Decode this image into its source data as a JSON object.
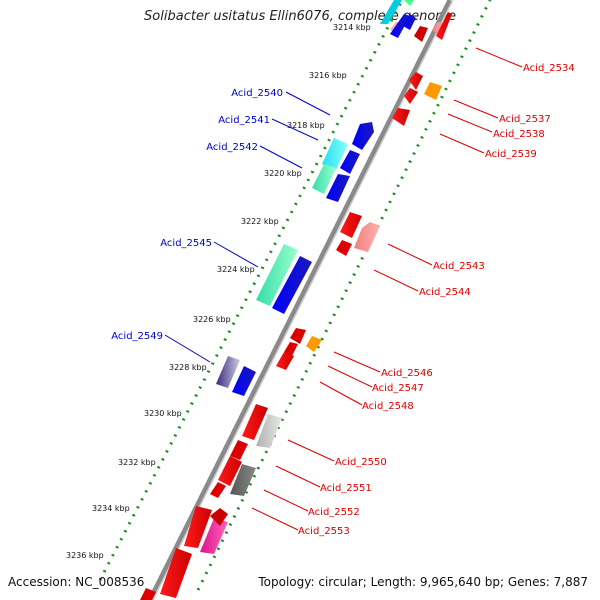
{
  "title": "Solibacter usitatus Ellin6076, complete genome",
  "footer": {
    "accession": "Accession: NC_008536",
    "summary": "Topology: circular; Length: 9,965,640 bp; Genes: 7,887"
  },
  "colors": {
    "forward_label": "#0000cc",
    "reverse_label": "#dd0000",
    "backbone": "#808080",
    "dots": "#1e8c1e"
  },
  "ticks": [
    "3214 kbp",
    "3216 kbp",
    "3218 kbp",
    "3220 kbp",
    "3222 kbp",
    "3224 kbp",
    "3226 kbp",
    "3228 kbp",
    "3230 kbp",
    "3232 kbp",
    "3234 kbp",
    "3236 kbp"
  ],
  "forward_labels": [
    "Acid_2540",
    "Acid_2541",
    "Acid_2542",
    "Acid_2545",
    "Acid_2549"
  ],
  "reverse_labels": [
    "Acid_2534",
    "Acid_2537",
    "Acid_2538",
    "Acid_2539",
    "Acid_2543",
    "Acid_2544",
    "Acid_2546",
    "Acid_2547",
    "Acid_2548",
    "Acid_2550",
    "Acid_2551",
    "Acid_2552",
    "Acid_2553"
  ]
}
